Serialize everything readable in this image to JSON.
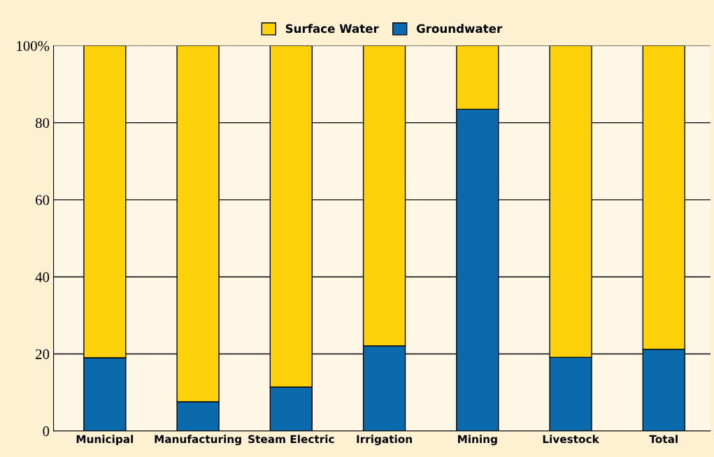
{
  "chart_data": {
    "type": "bar",
    "stacked": true,
    "categories": [
      "Municipal",
      "Manufacturing",
      "Steam Electric",
      "Irrigation",
      "Mining",
      "Livestock",
      "Total"
    ],
    "series": [
      {
        "name": "Groundwater",
        "color": "#0a6aab",
        "values": [
          19,
          7.6,
          11.4,
          22.1,
          83.5,
          19.1,
          21.2
        ]
      },
      {
        "name": "Surface Water",
        "color": "#fdd20a",
        "values": [
          81,
          92.4,
          88.6,
          77.9,
          16.5,
          80.9,
          78.8
        ]
      }
    ],
    "ylim": [
      0,
      100
    ],
    "yticks": [
      0,
      20,
      40,
      60,
      80,
      {
        "value": 100,
        "label": "100%"
      }
    ],
    "grid": "y",
    "legend": "top"
  }
}
